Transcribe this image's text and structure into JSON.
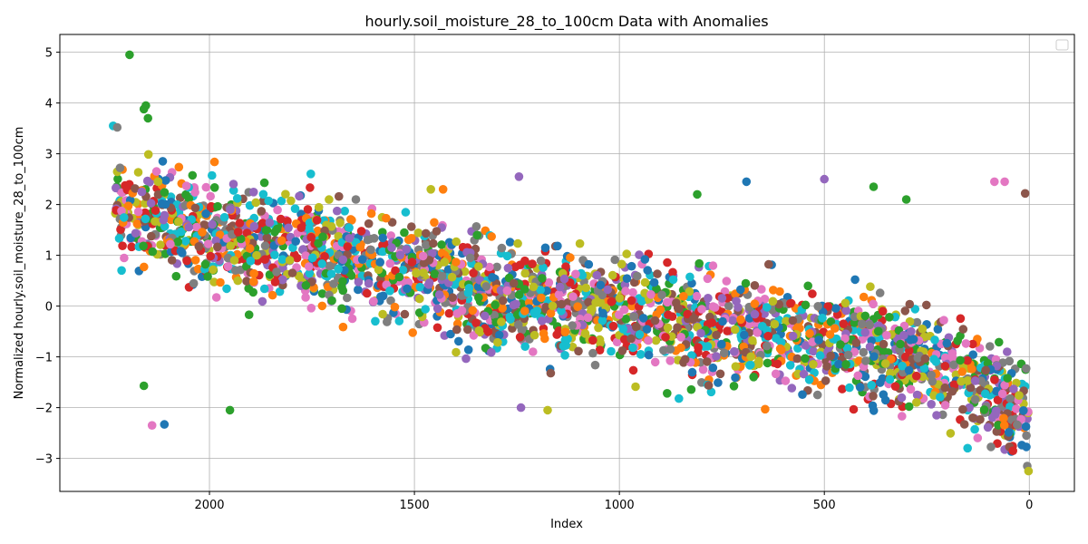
{
  "chart_data": {
    "type": "scatter",
    "title": "hourly.soil_moisture_28_to_100cm Data with Anomalies",
    "xlabel": "Index",
    "ylabel": "Normalized hourly.soil_moisture_28_to_100cm",
    "xlim": [
      2365,
      -110
    ],
    "x_inverted": true,
    "ylim": [
      -3.65,
      5.35
    ],
    "xticks": [
      2000,
      1500,
      1000,
      500,
      0
    ],
    "yticks": [
      -3,
      -2,
      -1,
      0,
      1,
      2,
      3,
      4,
      5
    ],
    "grid": true,
    "legend": {
      "placement": "top-right",
      "entries": []
    },
    "palette": [
      "#1f77b4",
      "#ff7f0e",
      "#2ca02c",
      "#d62728",
      "#9467bd",
      "#8c564b",
      "#e377c2",
      "#7f7f7f",
      "#bcbd22",
      "#17becf"
    ],
    "trend": {
      "x": [
        2230,
        2200,
        2150,
        2100,
        2050,
        2000,
        1950,
        1900,
        1850,
        1800,
        1750,
        1700,
        1650,
        1600,
        1550,
        1500,
        1450,
        1400,
        1350,
        1300,
        1250,
        1200,
        1150,
        1100,
        1050,
        1000,
        950,
        900,
        850,
        800,
        750,
        700,
        650,
        600,
        550,
        500,
        450,
        400,
        350,
        300,
        250,
        200,
        150,
        100,
        50,
        0
      ],
      "y": [
        2.0,
        1.9,
        1.75,
        1.6,
        1.45,
        1.4,
        1.3,
        1.25,
        1.15,
        1.1,
        1.05,
        1.0,
        0.95,
        0.85,
        0.75,
        0.65,
        0.55,
        0.45,
        0.35,
        0.25,
        0.2,
        0.1,
        0.05,
        0.0,
        -0.05,
        -0.1,
        -0.15,
        -0.25,
        -0.35,
        -0.4,
        -0.45,
        -0.5,
        -0.55,
        -0.6,
        -0.65,
        -0.7,
        -0.75,
        -0.85,
        -0.95,
        -1.05,
        -1.15,
        -1.3,
        -1.5,
        -1.7,
        -1.9,
        -2.1
      ]
    },
    "spread": 0.85,
    "n_points": 2600,
    "seed": 7,
    "notable_points": [
      {
        "x": 2195,
        "y": 4.95,
        "color": "#2ca02c"
      },
      {
        "x": 2155,
        "y": 3.95,
        "color": "#2ca02c"
      },
      {
        "x": 2160,
        "y": 3.88,
        "color": "#2ca02c"
      },
      {
        "x": 2150,
        "y": 3.7,
        "color": "#2ca02c"
      },
      {
        "x": 2235,
        "y": 3.55,
        "color": "#17becf"
      },
      {
        "x": 2225,
        "y": 3.52,
        "color": "#7f7f7f"
      },
      {
        "x": 2160,
        "y": -1.57,
        "color": "#2ca02c"
      },
      {
        "x": 2140,
        "y": -2.35,
        "color": "#e377c2"
      },
      {
        "x": 2110,
        "y": -2.33,
        "color": "#1f77b4"
      },
      {
        "x": 1950,
        "y": -2.05,
        "color": "#2ca02c"
      },
      {
        "x": 1460,
        "y": 2.3,
        "color": "#bcbd22"
      },
      {
        "x": 1430,
        "y": 2.3,
        "color": "#ff7f0e"
      },
      {
        "x": 1245,
        "y": 2.55,
        "color": "#9467bd"
      },
      {
        "x": 1240,
        "y": -2.0,
        "color": "#9467bd"
      },
      {
        "x": 1175,
        "y": -2.05,
        "color": "#bcbd22"
      },
      {
        "x": 810,
        "y": 2.2,
        "color": "#2ca02c"
      },
      {
        "x": 690,
        "y": 2.45,
        "color": "#1f77b4"
      },
      {
        "x": 500,
        "y": 2.5,
        "color": "#9467bd"
      },
      {
        "x": 380,
        "y": 2.35,
        "color": "#2ca02c"
      },
      {
        "x": 300,
        "y": 2.1,
        "color": "#2ca02c"
      },
      {
        "x": 85,
        "y": 2.45,
        "color": "#e377c2"
      },
      {
        "x": 60,
        "y": 2.45,
        "color": "#e377c2"
      },
      {
        "x": 10,
        "y": 2.22,
        "color": "#8c564b"
      },
      {
        "x": 5,
        "y": -3.15,
        "color": "#7f7f7f"
      },
      {
        "x": 2,
        "y": -3.25,
        "color": "#bcbd22"
      },
      {
        "x": 40,
        "y": -2.85,
        "color": "#d62728"
      }
    ]
  }
}
